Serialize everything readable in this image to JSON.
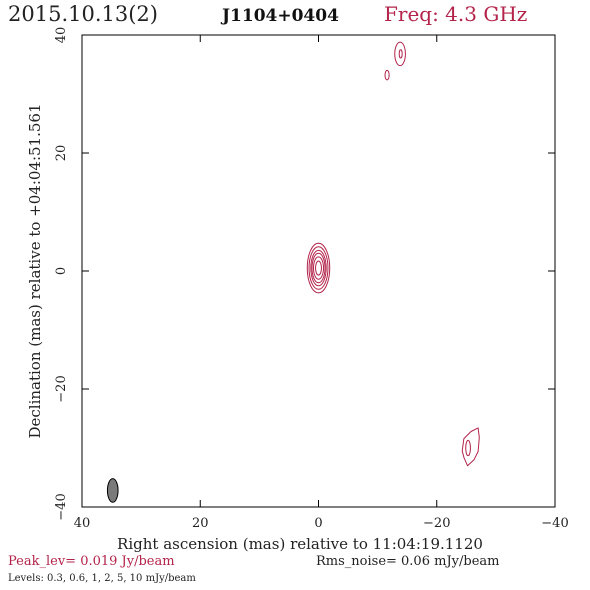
{
  "header": {
    "date": "2015.10.13(2)",
    "source": "J1104+0404",
    "freq": "Freq: 4.3 GHz"
  },
  "footer": {
    "peak": "Peak_lev=  0.019 Jy/beam",
    "rms": "Rms_noise= 0.06 mJy/beam",
    "levels": "Levels: 0.3, 0.6,   1,   2,   5,  10 mJy/beam"
  },
  "colors": {
    "contour": "#b3234a",
    "beam": "#7a7a7a",
    "text": "#222222"
  },
  "chart_data": {
    "type": "contour",
    "xlabel": "Right ascension (mas) relative to 11:04:19.1120",
    "ylabel": "Declination (mas) relative to +04:04:51.561",
    "xlim": [
      40,
      -40
    ],
    "ylim": [
      -40,
      40
    ],
    "x_ticks": [
      40,
      20,
      0,
      -20,
      -40
    ],
    "y_ticks": [
      -40,
      -20,
      0,
      20,
      40
    ],
    "x_tick_labels": [
      "40",
      "20",
      "0",
      "−20",
      "−40"
    ],
    "y_tick_labels": [
      "−40",
      "−20",
      "0",
      "20",
      "40"
    ],
    "contour_levels_mJy": [
      0.3,
      0.6,
      1,
      2,
      5,
      10
    ],
    "core": {
      "x": 0,
      "y": 0.5,
      "semi_major": [
        4.2,
        3.6,
        3.0,
        2.5,
        1.9,
        1.2
      ],
      "semi_minor": [
        1.9,
        1.6,
        1.3,
        1.1,
        0.85,
        0.5
      ]
    },
    "features": [
      {
        "x": -13.8,
        "y": 36.8,
        "semi_major": 2.0,
        "semi_minor": 0.9
      },
      {
        "x": -13.9,
        "y": 36.8,
        "semi_major": 0.7,
        "semi_minor": 0.25
      },
      {
        "x": -11.6,
        "y": 33.2,
        "semi_major": 0.8,
        "semi_minor": 0.35
      },
      {
        "x": -25.3,
        "y": -30.0,
        "semi_major": 1.3,
        "semi_minor": 0.4
      }
    ],
    "blob": {
      "points": [
        [
          -24.3,
          -30.5
        ],
        [
          -24.6,
          -28.4
        ],
        [
          -25.8,
          -27.2
        ],
        [
          -27.0,
          -26.6
        ],
        [
          -27.2,
          -28.2
        ],
        [
          -27.0,
          -30.6
        ],
        [
          -26.3,
          -32.0
        ],
        [
          -25.2,
          -33.0
        ],
        [
          -24.6,
          -31.6
        ]
      ]
    },
    "beam": {
      "x": 34.8,
      "y": -37.2,
      "semi_major": 2.0,
      "semi_minor": 0.9
    }
  }
}
